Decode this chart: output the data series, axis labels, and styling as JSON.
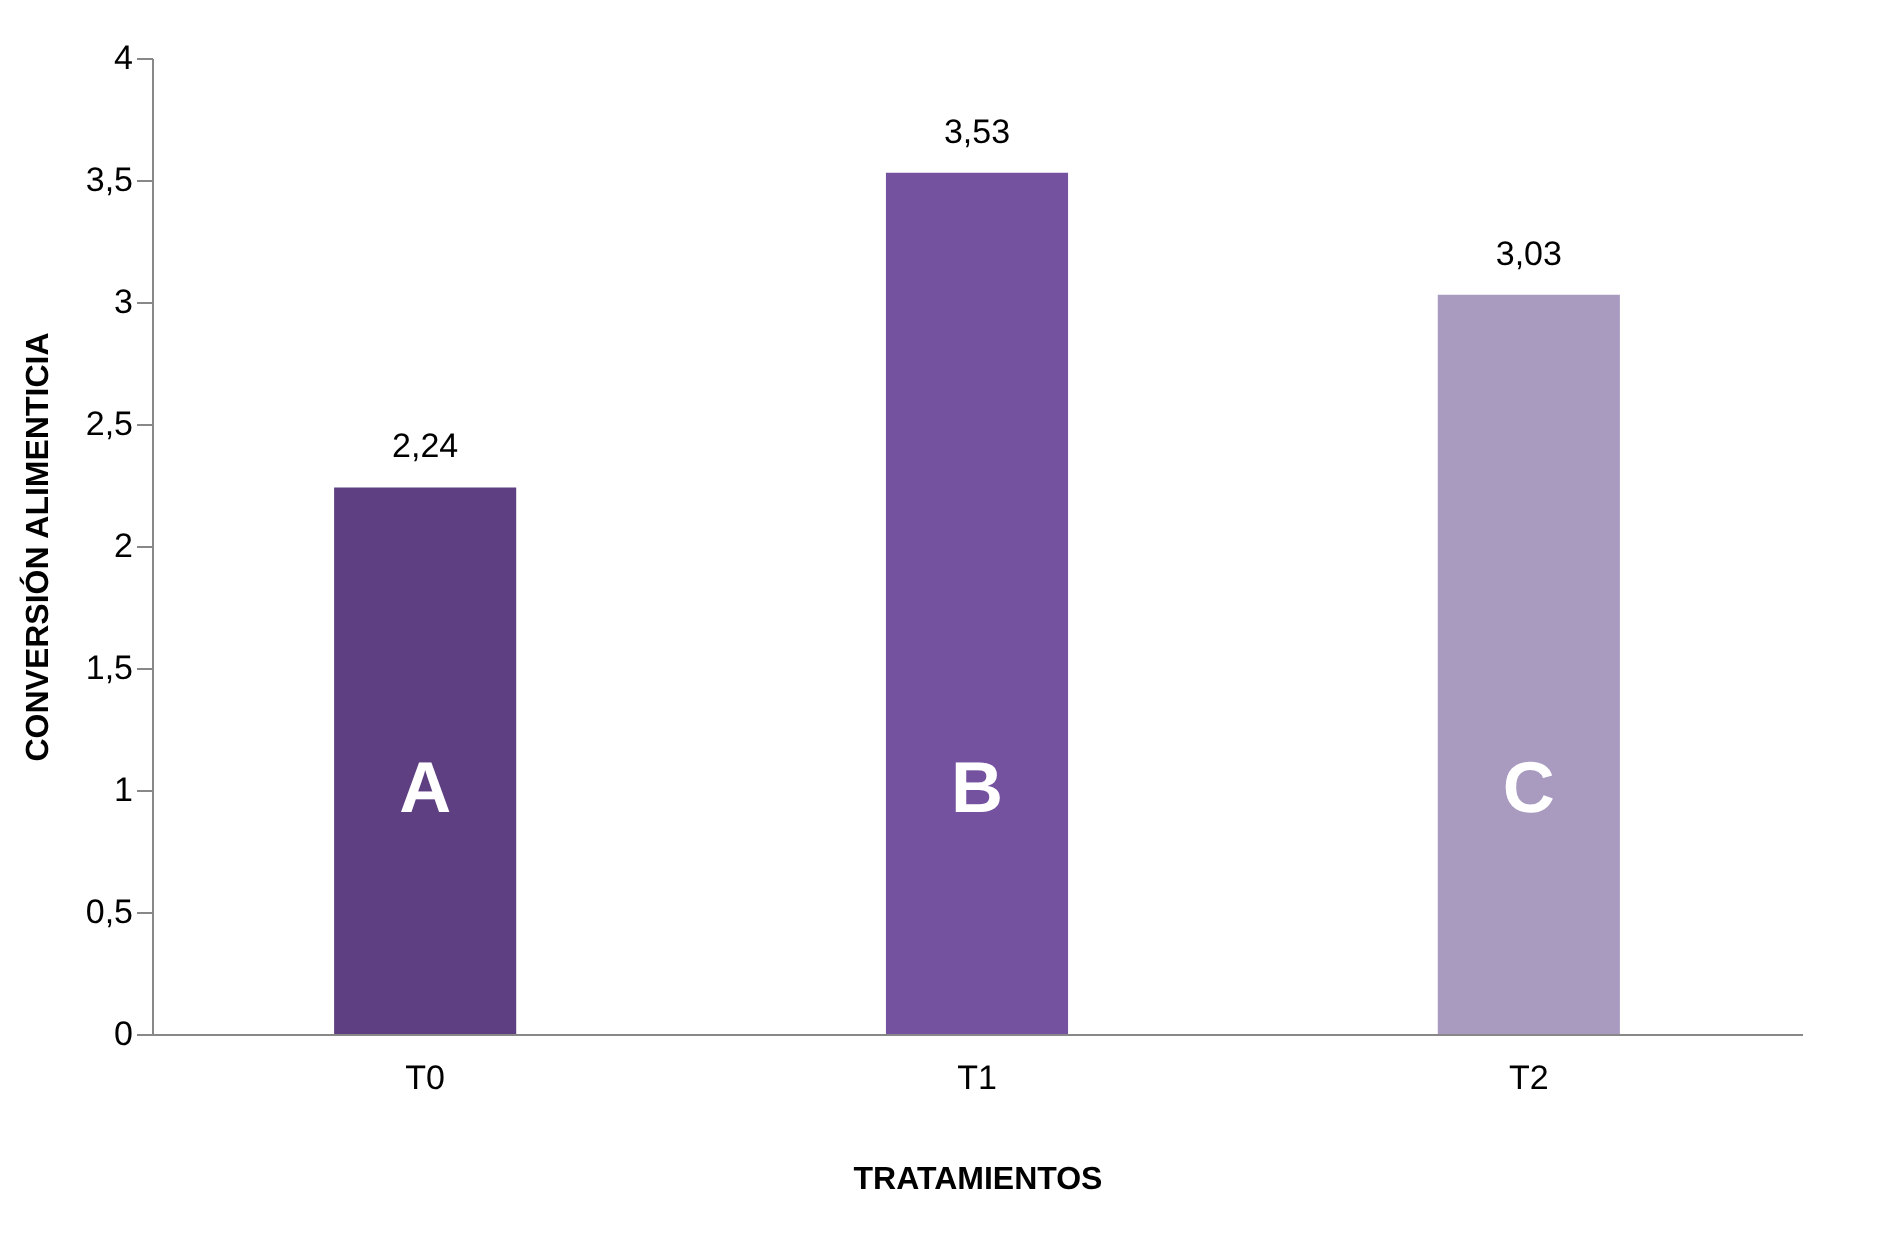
{
  "chart_data": {
    "type": "bar",
    "xlabel": "TRATAMIENTOS",
    "ylabel": "CONVERSIÓN ALIMENTICIA",
    "categories": [
      "T0",
      "T1",
      "T2"
    ],
    "values": [
      2.24,
      3.53,
      3.03
    ],
    "colors": [
      "#5e3f82",
      "#7452a0",
      "#a99ac0"
    ],
    "value_labels": [
      "2,24",
      "3,53",
      "3,03"
    ],
    "annotations": [
      "A",
      "B",
      "C"
    ],
    "ylim": [
      0,
      4
    ],
    "yticks": [
      0,
      {
        "value": 0.5,
        "label": "0,5"
      },
      1,
      {
        "value": 1.5,
        "label": "1,5"
      },
      2,
      {
        "value": 2.5,
        "label": "2,5"
      },
      3,
      {
        "value": 3.5,
        "label": "3,5"
      },
      4
    ],
    "grid": false
  }
}
